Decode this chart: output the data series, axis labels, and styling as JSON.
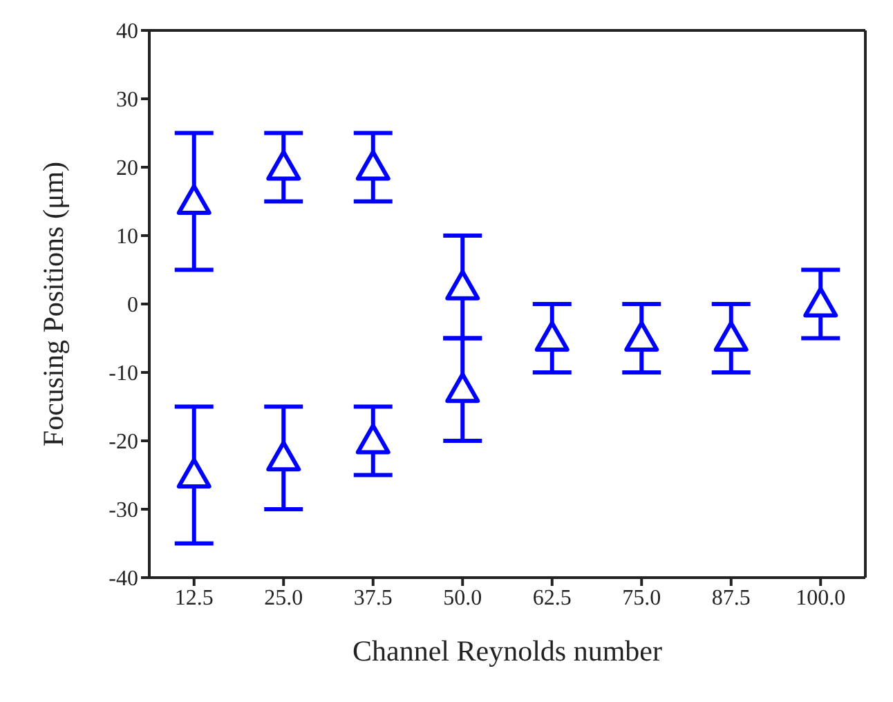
{
  "chart_data": {
    "type": "scatter",
    "xlabel": "Channel Reynolds number",
    "ylabel": "Focusing Positions (μm)",
    "categories": [
      "12.5",
      "25.0",
      "37.5",
      "50.0",
      "62.5",
      "75.0",
      "87.5",
      "100.0"
    ],
    "series": [
      {
        "color": "#0000ff",
        "values": [
          15,
          20,
          20,
          2.5,
          -5,
          -5,
          -5,
          0
        ],
        "errors": [
          [
            5,
            25
          ],
          [
            15,
            25
          ],
          [
            15,
            25
          ],
          [
            -5,
            10
          ],
          [
            -10,
            0
          ],
          [
            -10,
            0
          ],
          [
            -10,
            0
          ],
          [
            -5,
            5
          ]
        ]
      },
      {
        "color": "#0000ff",
        "values": [
          -25,
          -22.5,
          -20,
          -12.5,
          null,
          null,
          null,
          null
        ],
        "errors": [
          [
            -35,
            -15
          ],
          [
            -30,
            -15
          ],
          [
            -25,
            -15
          ],
          [
            -20,
            -5
          ],
          null,
          null,
          null,
          null
        ]
      }
    ],
    "ylim": [
      -40,
      40
    ],
    "yticks": [
      -40,
      -30,
      -20,
      -10,
      0,
      10,
      20,
      30,
      40
    ],
    "grid": false,
    "legend": false,
    "marker": "triangle"
  }
}
